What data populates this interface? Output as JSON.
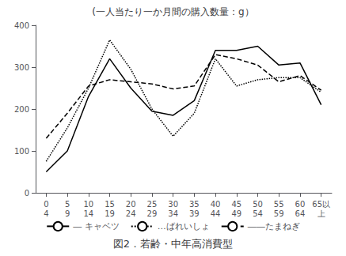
{
  "chart_data": {
    "type": "line",
    "title": "(一人当たり一か月間の購入数量：g）",
    "subtitle": "図2．若齢・中年高消費型",
    "categories": [
      "0\n4",
      "5\n9",
      "10\n14",
      "15\n19",
      "20\n24",
      "25\n29",
      "30\n34",
      "35\n39",
      "40\n44",
      "45\n49",
      "50\n54",
      "55\n59",
      "60\n64",
      "65以\n上"
    ],
    "series": [
      {
        "name": "― キャベツ",
        "color": "#000000",
        "line_style": "solid",
        "values": [
          50,
          100,
          230,
          320,
          250,
          195,
          185,
          220,
          340,
          340,
          350,
          305,
          310,
          210
        ]
      },
      {
        "name": "…ばれいしょ",
        "color": "#000000",
        "line_style": "dotted",
        "values": [
          75,
          155,
          250,
          365,
          295,
          200,
          135,
          190,
          320,
          255,
          270,
          275,
          275,
          240
        ]
      },
      {
        "name": "――たまねぎ",
        "color": "#000000",
        "line_style": "dashed",
        "values": [
          130,
          190,
          255,
          270,
          265,
          260,
          248,
          255,
          330,
          320,
          305,
          265,
          280,
          245
        ]
      }
    ],
    "ylim": [
      0,
      400
    ],
    "yticks": [
      0,
      100,
      200,
      300,
      400
    ],
    "grid": false,
    "legend": "bottom"
  }
}
